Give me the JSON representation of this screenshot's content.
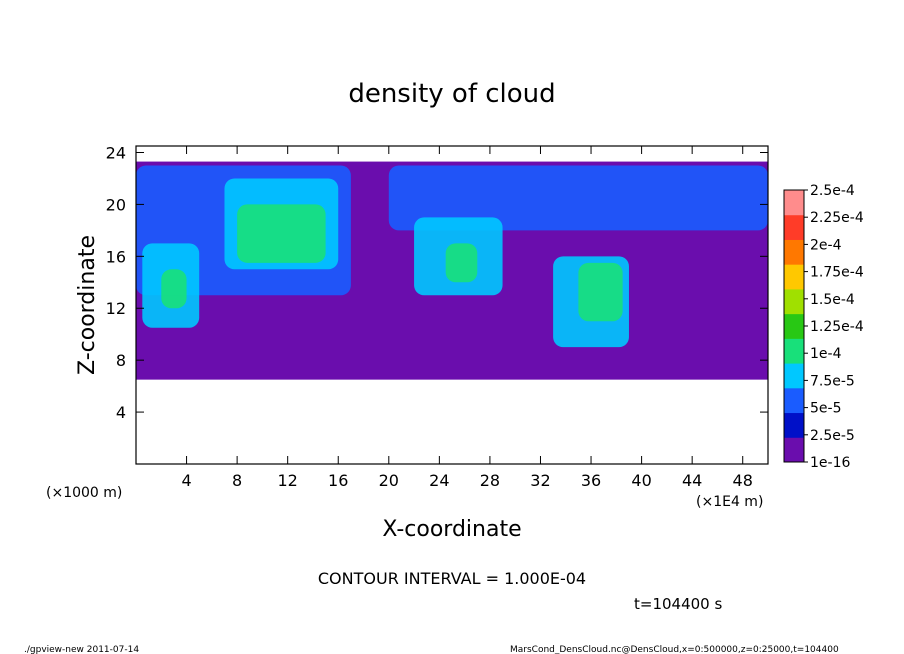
{
  "chart_data": {
    "type": "heatmap",
    "title": "density of cloud",
    "xlabel": "X-coordinate",
    "ylabel": "Z-coordinate",
    "x_unit_left": "(×1000 m)",
    "x_unit_right": "(×1E4 m)",
    "xlim": [
      0,
      50
    ],
    "ylim": [
      0,
      24.5
    ],
    "x_ticks": [
      4,
      8,
      12,
      16,
      20,
      24,
      28,
      32,
      36,
      40,
      44,
      48
    ],
    "y_ticks": [
      4,
      8,
      12,
      16,
      20,
      24
    ],
    "colorbar_labels": [
      "1e-16",
      "2.5e-5",
      "5e-5",
      "7.5e-5",
      "1e-4",
      "1.25e-4",
      "1.5e-4",
      "1.75e-4",
      "2e-4",
      "2.25e-4",
      "2.5e-4"
    ],
    "colorbar_colors": [
      "#6a0dad",
      "#0010c8",
      "#1a5cff",
      "#00c8ff",
      "#18e07a",
      "#28c814",
      "#a0e000",
      "#ffc800",
      "#ff7800",
      "#ff3c28",
      "#ff8c8c"
    ],
    "cloud_bands": [
      {
        "x0": 0,
        "x1": 50,
        "z0": 6.5,
        "z1": 23.3,
        "level": 0
      },
      {
        "x0": 0,
        "x1": 17,
        "z0": 13,
        "z1": 23,
        "level": 1
      },
      {
        "x0": 20,
        "x1": 50,
        "z0": 18,
        "z1": 23,
        "level": 1
      },
      {
        "x0": 7,
        "x1": 16,
        "z0": 15,
        "z1": 22,
        "level": 3
      },
      {
        "x0": 0.5,
        "x1": 5,
        "z0": 10.5,
        "z1": 17,
        "level": 3
      },
      {
        "x0": 22,
        "x1": 29,
        "z0": 13,
        "z1": 19,
        "level": 3
      },
      {
        "x0": 33,
        "x1": 39,
        "z0": 9,
        "z1": 16,
        "level": 3
      },
      {
        "x0": 8,
        "x1": 15,
        "z0": 15.5,
        "z1": 20,
        "level": 4
      },
      {
        "x0": 2,
        "x1": 4,
        "z0": 12,
        "z1": 15,
        "level": 4
      },
      {
        "x0": 35,
        "x1": 38.5,
        "z0": 11,
        "z1": 15.5,
        "level": 4
      },
      {
        "x0": 24.5,
        "x1": 27,
        "z0": 14,
        "z1": 17,
        "level": 4
      }
    ],
    "contour_interval": "CONTOUR INTERVAL = 1.000E-04",
    "time": "t=104400 s"
  },
  "footer": {
    "left": "./gpview-new   2011-07-14",
    "right": "MarsCond_DensCloud.nc@DensCloud,x=0:500000,z=0:25000,t=104400"
  }
}
